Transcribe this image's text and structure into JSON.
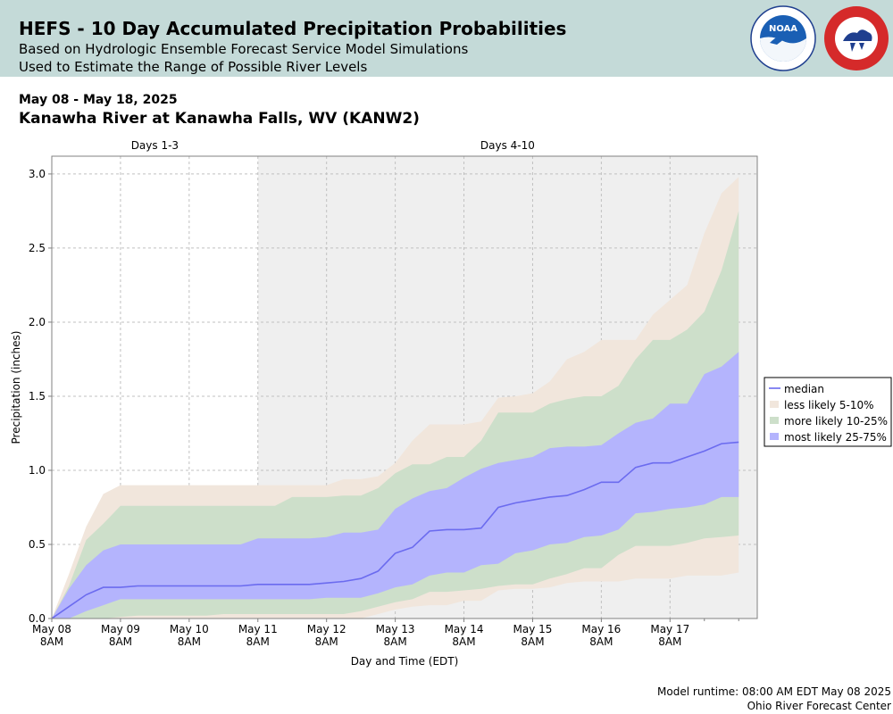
{
  "header": {
    "title": "HEFS - 10 Day Accumulated Precipitation Probabilities",
    "subtitle_1": "Based on Hydrologic Ensemble Forecast Service Model Simulations",
    "subtitle_2": "Used to Estimate the Range of Possible River Levels",
    "logos": [
      "noaa-logo",
      "national-weather-service-logo"
    ],
    "noaa_logo_text": "NOAA"
  },
  "date_range": "May 08 - May 18, 2025",
  "location": "Kanawha River at Kanawha Falls, WV (KANW2)",
  "footer": {
    "runtime": "Model runtime: 08:00 AM EDT May 08 2025",
    "center": "Ohio River Forecast Center"
  },
  "colors": {
    "median": "#6b6bef",
    "less_likely": "#f1e6dc",
    "more_likely": "#cddfca",
    "most_likely": "#b4b4fd",
    "days_4_10_bg": "#efefef",
    "banner": "#c4dad8"
  },
  "chart_data": {
    "type": "area",
    "xlabel": "Day and Time (EDT)",
    "ylabel": "Precipitation (inches)",
    "ylim": [
      0,
      3.12
    ],
    "xlim": [
      0,
      10.27
    ],
    "grid": true,
    "legend_placement": "right",
    "period_labels": [
      {
        "label": "Days 1-3",
        "start": 0,
        "end": 3
      },
      {
        "label": "Days 4-10",
        "start": 3,
        "end": 10.27
      }
    ],
    "yticks": [
      "0.0",
      "0.5",
      "1.0",
      "1.5",
      "2.0",
      "2.5",
      "3.0"
    ],
    "xticks": [
      {
        "x": 0,
        "date": "May 08",
        "time": "8AM"
      },
      {
        "x": 1,
        "date": "May 09",
        "time": "8AM"
      },
      {
        "x": 2,
        "date": "May 10",
        "time": "8AM"
      },
      {
        "x": 3,
        "date": "May 11",
        "time": "8AM"
      },
      {
        "x": 4,
        "date": "May 12",
        "time": "8AM"
      },
      {
        "x": 5,
        "date": "May 13",
        "time": "8AM"
      },
      {
        "x": 6,
        "date": "May 14",
        "time": "8AM"
      },
      {
        "x": 7,
        "date": "May 15",
        "time": "8AM"
      },
      {
        "x": 8,
        "date": "May 16",
        "time": "8AM"
      },
      {
        "x": 9,
        "date": "May 17",
        "time": "8AM"
      }
    ],
    "x": [
      0,
      0.25,
      0.5,
      0.75,
      1.0,
      1.25,
      1.5,
      1.75,
      2.0,
      2.25,
      2.5,
      2.75,
      3.0,
      3.25,
      3.5,
      3.75,
      4.0,
      4.25,
      4.5,
      4.75,
      5.0,
      5.25,
      5.5,
      5.75,
      6.0,
      6.25,
      6.5,
      6.75,
      7.0,
      7.25,
      7.5,
      7.75,
      8.0,
      8.25,
      8.5,
      8.75,
      9.0,
      9.25,
      9.5,
      9.75,
      10.0
    ],
    "series": [
      {
        "name": "less likely 5-10%",
        "kind": "band",
        "upper": [
          0,
          0.3,
          0.62,
          0.84,
          0.9,
          0.9,
          0.9,
          0.9,
          0.9,
          0.9,
          0.9,
          0.9,
          0.9,
          0.9,
          0.9,
          0.9,
          0.9,
          0.94,
          0.94,
          0.96,
          1.05,
          1.2,
          1.31,
          1.31,
          1.31,
          1.33,
          1.49,
          1.5,
          1.52,
          1.6,
          1.75,
          1.8,
          1.88,
          1.88,
          1.88,
          2.05,
          2.15,
          2.25,
          2.6,
          2.87,
          2.98
        ],
        "lower": [
          0,
          0,
          0,
          0,
          0,
          0,
          0,
          0,
          0,
          0,
          0,
          0,
          0,
          0,
          0,
          0,
          0,
          0,
          0,
          0.03,
          0.06,
          0.08,
          0.09,
          0.09,
          0.12,
          0.12,
          0.19,
          0.2,
          0.2,
          0.21,
          0.24,
          0.25,
          0.25,
          0.25,
          0.27,
          0.27,
          0.27,
          0.29,
          0.29,
          0.29,
          0.31
        ]
      },
      {
        "name": "more likely 10-25%",
        "kind": "band",
        "upper": [
          0,
          0.22,
          0.53,
          0.64,
          0.76,
          0.76,
          0.76,
          0.76,
          0.76,
          0.76,
          0.76,
          0.76,
          0.76,
          0.76,
          0.82,
          0.82,
          0.82,
          0.83,
          0.83,
          0.88,
          0.98,
          1.04,
          1.04,
          1.09,
          1.09,
          1.2,
          1.39,
          1.39,
          1.39,
          1.45,
          1.48,
          1.5,
          1.5,
          1.57,
          1.75,
          1.88,
          1.88,
          1.95,
          2.07,
          2.35,
          2.75
        ],
        "lower": [
          0,
          0,
          0,
          0,
          0.01,
          0.02,
          0.02,
          0.02,
          0.02,
          0.02,
          0.03,
          0.03,
          0.03,
          0.03,
          0.03,
          0.03,
          0.03,
          0.03,
          0.05,
          0.08,
          0.11,
          0.13,
          0.18,
          0.18,
          0.19,
          0.2,
          0.22,
          0.23,
          0.23,
          0.27,
          0.3,
          0.34,
          0.34,
          0.43,
          0.49,
          0.49,
          0.49,
          0.51,
          0.54,
          0.55,
          0.56
        ]
      },
      {
        "name": "most likely 25-75%",
        "kind": "band",
        "upper": [
          0,
          0.2,
          0.36,
          0.46,
          0.5,
          0.5,
          0.5,
          0.5,
          0.5,
          0.5,
          0.5,
          0.5,
          0.54,
          0.54,
          0.54,
          0.54,
          0.55,
          0.58,
          0.58,
          0.6,
          0.74,
          0.81,
          0.86,
          0.88,
          0.95,
          1.01,
          1.05,
          1.07,
          1.09,
          1.15,
          1.16,
          1.16,
          1.17,
          1.25,
          1.32,
          1.35,
          1.45,
          1.45,
          1.65,
          1.7,
          1.8
        ],
        "lower": [
          0,
          0,
          0.05,
          0.09,
          0.13,
          0.13,
          0.13,
          0.13,
          0.13,
          0.13,
          0.13,
          0.13,
          0.13,
          0.13,
          0.13,
          0.13,
          0.14,
          0.14,
          0.14,
          0.17,
          0.21,
          0.23,
          0.29,
          0.31,
          0.31,
          0.36,
          0.37,
          0.44,
          0.46,
          0.5,
          0.51,
          0.55,
          0.56,
          0.6,
          0.71,
          0.72,
          0.74,
          0.75,
          0.77,
          0.82,
          0.82
        ]
      },
      {
        "name": "median",
        "kind": "line",
        "values": [
          0,
          0.08,
          0.16,
          0.21,
          0.21,
          0.22,
          0.22,
          0.22,
          0.22,
          0.22,
          0.22,
          0.22,
          0.23,
          0.23,
          0.23,
          0.23,
          0.24,
          0.25,
          0.27,
          0.32,
          0.44,
          0.48,
          0.59,
          0.6,
          0.6,
          0.61,
          0.75,
          0.78,
          0.8,
          0.82,
          0.83,
          0.87,
          0.92,
          0.92,
          1.02,
          1.05,
          1.05,
          1.09,
          1.13,
          1.18,
          1.19
        ]
      }
    ],
    "legend": [
      "median",
      "less likely 5-10%",
      "more likely 10-25%",
      "most likely 25-75%"
    ]
  }
}
